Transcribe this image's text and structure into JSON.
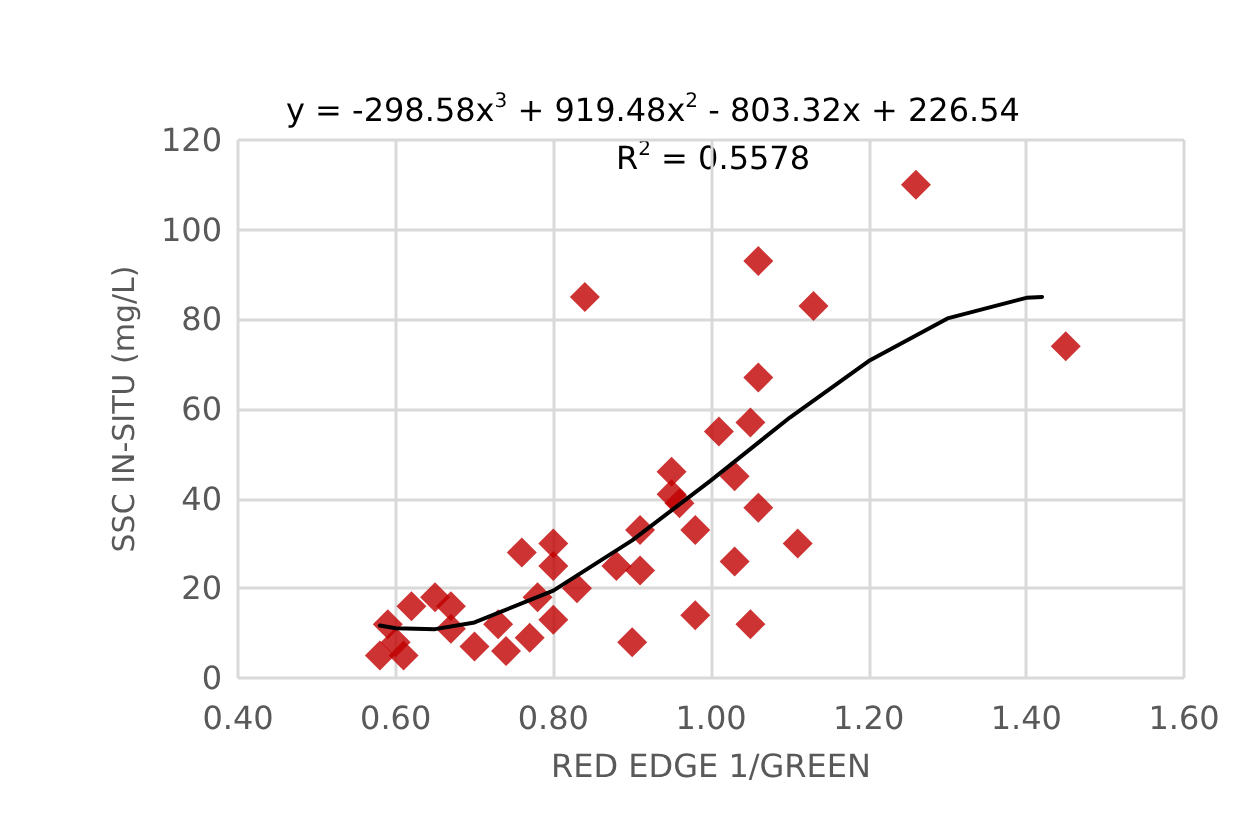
{
  "chart_data": {
    "type": "scatter",
    "xlabel": "RED EDGE 1/GREEN",
    "ylabel": "SSC IN-SITU (mg/L)",
    "annotations": [
      "y = -298.58x$^{3}$ + 919.48x$^{2}$ - 803.32x + 226.54",
      "R$^{2}$ = 0.5578"
    ],
    "xlim": [
      0.4,
      1.6
    ],
    "xticks": [
      {
        "value": 0.4,
        "label": "0.40"
      },
      {
        "value": 0.6,
        "label": "0.60"
      },
      {
        "value": 0.8,
        "label": "0.80"
      },
      {
        "value": 1.0,
        "label": "1.00"
      },
      {
        "value": 1.2,
        "label": "1.20"
      },
      {
        "value": 1.4,
        "label": "1.40"
      },
      {
        "value": 1.6,
        "label": "1.60"
      }
    ],
    "ylim": [
      0,
      120
    ],
    "yticks": [
      0,
      20,
      40,
      60,
      80,
      100,
      120
    ],
    "grid": true,
    "marker": "diamond",
    "series": [
      {
        "color": "#c00000",
        "x": [
          1.26,
          1.45,
          1.06,
          1.13,
          0.84,
          1.06,
          1.05,
          1.01,
          0.95,
          0.95,
          0.96,
          1.03,
          0.98,
          0.91,
          0.91,
          0.88,
          1.03,
          1.06,
          1.11,
          0.98,
          0.9,
          1.05,
          0.8,
          0.8,
          0.76,
          0.83,
          0.78,
          0.8,
          0.77,
          0.73,
          0.74,
          0.7,
          0.67,
          0.67,
          0.65,
          0.62,
          0.59,
          0.58,
          0.61,
          0.6
        ],
        "values": [
          110,
          74,
          93,
          83,
          85,
          67,
          57,
          55,
          46,
          41,
          39,
          45,
          33,
          33,
          24,
          25,
          26,
          38,
          30,
          14,
          8,
          12,
          30,
          25,
          28,
          20,
          18,
          13,
          9,
          12,
          6,
          7,
          11,
          16,
          18,
          16,
          12,
          5,
          5,
          8
        ]
      },
      {
        "type": "line",
        "color": "#000000",
        "marker": "none",
        "x": [
          0.58,
          0.6,
          0.65,
          0.7,
          0.8,
          0.9,
          1.0,
          1.1,
          1.2,
          1.3,
          1.4,
          1.42
        ],
        "values": [
          11.7,
          11.1,
          10.9,
          12.4,
          19.5,
          30.7,
          44.1,
          58.1,
          70.7,
          80.2,
          84.8,
          85.0
        ]
      }
    ]
  }
}
